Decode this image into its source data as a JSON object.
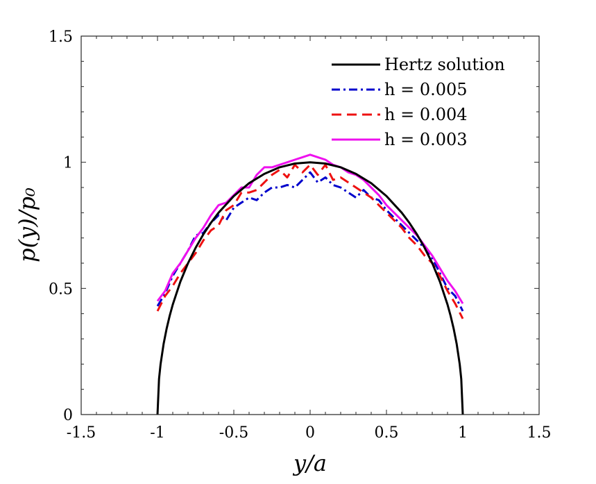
{
  "chart_data": {
    "type": "line",
    "title": "",
    "xlabel": "y/a",
    "ylabel": "p(y)/p₀",
    "xlim": [
      -1.5,
      1.5
    ],
    "ylim": [
      0,
      1.5
    ],
    "xticks": [
      -1.5,
      -1,
      -0.5,
      0,
      0.5,
      1,
      1.5
    ],
    "yticks": [
      0,
      0.5,
      1,
      1.5
    ],
    "xtick_labels": [
      "-1.5",
      "-1",
      "-0.5",
      "0",
      "0.5",
      "1",
      "1.5"
    ],
    "ytick_labels": [
      "0",
      "0.5",
      "1",
      "1.5"
    ],
    "grid": false,
    "legend_position": "top-right",
    "series": [
      {
        "name": "Hertz solution",
        "color": "#000000",
        "style": "solid",
        "x": [
          -1.0,
          -0.99,
          -0.98,
          -0.96,
          -0.94,
          -0.92,
          -0.9,
          -0.85,
          -0.8,
          -0.75,
          -0.7,
          -0.65,
          -0.6,
          -0.5,
          -0.4,
          -0.3,
          -0.2,
          -0.1,
          0.0,
          0.1,
          0.2,
          0.3,
          0.4,
          0.5,
          0.6,
          0.65,
          0.7,
          0.75,
          0.8,
          0.85,
          0.9,
          0.92,
          0.94,
          0.96,
          0.98,
          0.99,
          1.0
        ],
        "y": [
          0.0,
          0.141,
          0.199,
          0.28,
          0.341,
          0.392,
          0.436,
          0.527,
          0.6,
          0.661,
          0.714,
          0.76,
          0.8,
          0.866,
          0.917,
          0.954,
          0.98,
          0.995,
          1.0,
          0.995,
          0.98,
          0.954,
          0.917,
          0.866,
          0.8,
          0.76,
          0.714,
          0.661,
          0.6,
          0.527,
          0.436,
          0.392,
          0.341,
          0.28,
          0.199,
          0.141,
          0.0
        ]
      },
      {
        "name": "h = 0.005",
        "color": "#0000cc",
        "style": "dashdot",
        "x": [
          -1.0,
          -0.95,
          -0.9,
          -0.85,
          -0.8,
          -0.75,
          -0.7,
          -0.65,
          -0.6,
          -0.55,
          -0.5,
          -0.45,
          -0.4,
          -0.35,
          -0.3,
          -0.25,
          -0.2,
          -0.15,
          -0.1,
          -0.05,
          0.0,
          0.05,
          0.1,
          0.15,
          0.2,
          0.25,
          0.3,
          0.35,
          0.4,
          0.45,
          0.5,
          0.55,
          0.6,
          0.65,
          0.7,
          0.75,
          0.8,
          0.85,
          0.9,
          0.95,
          1.0
        ],
        "y": [
          0.43,
          0.48,
          0.55,
          0.6,
          0.65,
          0.71,
          0.72,
          0.76,
          0.79,
          0.77,
          0.82,
          0.84,
          0.86,
          0.85,
          0.88,
          0.9,
          0.9,
          0.91,
          0.9,
          0.93,
          0.96,
          0.92,
          0.94,
          0.91,
          0.9,
          0.88,
          0.86,
          0.89,
          0.86,
          0.85,
          0.81,
          0.78,
          0.75,
          0.72,
          0.69,
          0.66,
          0.62,
          0.56,
          0.5,
          0.47,
          0.41
        ]
      },
      {
        "name": "h = 0.004",
        "color": "#ee1111",
        "style": "dashed",
        "x": [
          -1.0,
          -0.95,
          -0.9,
          -0.85,
          -0.8,
          -0.75,
          -0.7,
          -0.65,
          -0.6,
          -0.55,
          -0.5,
          -0.45,
          -0.4,
          -0.35,
          -0.3,
          -0.25,
          -0.2,
          -0.15,
          -0.1,
          -0.05,
          0.0,
          0.05,
          0.1,
          0.15,
          0.2,
          0.25,
          0.3,
          0.35,
          0.4,
          0.45,
          0.5,
          0.55,
          0.6,
          0.65,
          0.7,
          0.75,
          0.8,
          0.85,
          0.9,
          0.95,
          1.0
        ],
        "y": [
          0.41,
          0.47,
          0.51,
          0.56,
          0.6,
          0.64,
          0.69,
          0.73,
          0.75,
          0.81,
          0.83,
          0.88,
          0.88,
          0.89,
          0.92,
          0.95,
          0.97,
          0.94,
          0.99,
          0.96,
          0.99,
          0.95,
          0.99,
          0.93,
          0.94,
          0.92,
          0.9,
          0.88,
          0.86,
          0.83,
          0.8,
          0.77,
          0.74,
          0.7,
          0.67,
          0.63,
          0.6,
          0.55,
          0.49,
          0.44,
          0.38
        ]
      },
      {
        "name": "h = 0.003",
        "color": "#ee11ee",
        "style": "solid",
        "x": [
          -1.0,
          -0.95,
          -0.9,
          -0.85,
          -0.8,
          -0.75,
          -0.7,
          -0.65,
          -0.6,
          -0.55,
          -0.5,
          -0.45,
          -0.4,
          -0.35,
          -0.3,
          -0.25,
          -0.2,
          -0.15,
          -0.1,
          -0.05,
          0.0,
          0.05,
          0.1,
          0.15,
          0.2,
          0.25,
          0.3,
          0.35,
          0.4,
          0.45,
          0.5,
          0.55,
          0.6,
          0.65,
          0.7,
          0.75,
          0.8,
          0.85,
          0.9,
          0.95,
          1.0
        ],
        "y": [
          0.45,
          0.49,
          0.56,
          0.6,
          0.65,
          0.7,
          0.74,
          0.79,
          0.83,
          0.84,
          0.87,
          0.9,
          0.9,
          0.95,
          0.98,
          0.98,
          0.99,
          1.0,
          1.01,
          1.02,
          1.03,
          1.02,
          1.01,
          0.99,
          0.98,
          0.96,
          0.95,
          0.93,
          0.9,
          0.87,
          0.83,
          0.8,
          0.77,
          0.74,
          0.71,
          0.67,
          0.63,
          0.58,
          0.53,
          0.49,
          0.44
        ]
      }
    ]
  }
}
